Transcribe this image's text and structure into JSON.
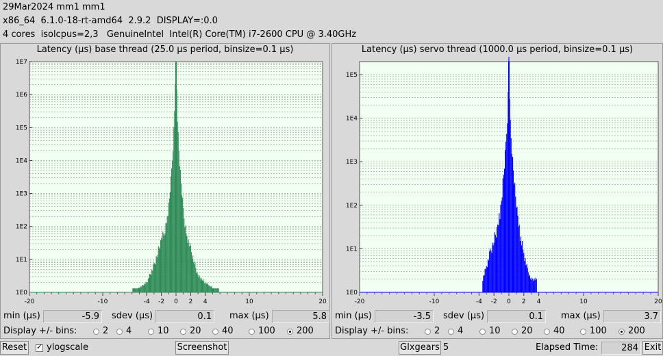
{
  "header": {
    "line1": "29Mar2024 mm1 mm1",
    "line2": "x86_64  6.1.0-18-rt-amd64  2.9.2  DISPLAY=:0.0",
    "line3": "4 cores  isolcpus=2,3   GenuineIntel  Intel(R) Core(TM) i7-2600 CPU @ 3.40GHz"
  },
  "base": {
    "title": "Latency (µs) base thread (25.0 µs period, binsize=0.1 µs)",
    "min_label": "min (µs)",
    "min": "-5.9",
    "sdev_label": "sdev (µs)",
    "sdev": "0.1",
    "max_label": "max (µs)",
    "max": "5.8",
    "color": "#2e8b57"
  },
  "servo": {
    "title": "Latency (µs) servo thread (1000.0 µs period, binsize=0.1 µs)",
    "min_label": "min (µs)",
    "min": "-3.5",
    "sdev_label": "sdev (µs)",
    "sdev": "0.1",
    "max_label": "max (µs)",
    "max": "3.7",
    "color": "#0000ff"
  },
  "bins_label": "Display +/- bins:",
  "bin_options": [
    "2",
    "4",
    "10",
    "20",
    "40",
    "100",
    "200"
  ],
  "bin_selected": "200",
  "footer": {
    "reset": "Reset",
    "ylogscale": "ylogscale",
    "ylogscale_checked": true,
    "screenshot": "Screenshot",
    "glxgears": "Glxgears",
    "glxgears_count": "5",
    "elapsed_label": "Elapsed Time:",
    "elapsed": "284",
    "exit": "Exit"
  },
  "chart_data": [
    {
      "type": "bar",
      "title": "Latency (µs) base thread (25.0 µs period, binsize=0.1 µs)",
      "yscale": "log",
      "x_ticks": [
        "-20",
        "-10",
        "-4",
        "-2",
        "0",
        "2",
        "4",
        "10",
        "20"
      ],
      "x_tick_values": [
        -20,
        -10,
        -4,
        -2,
        0,
        2,
        4,
        10,
        20
      ],
      "y_ticks": [
        "1E0",
        "1E1",
        "1E2",
        "1E3",
        "1E4",
        "1E5",
        "1E6",
        "1E7"
      ],
      "xlim": [
        -20,
        20
      ],
      "ylim_log10": [
        0,
        7
      ],
      "x": [
        -5.9,
        -4.0,
        -3.0,
        -2.5,
        -2.0,
        -1.5,
        -1.2,
        -1.0,
        -0.8,
        -0.6,
        -0.4,
        -0.2,
        -0.1,
        0.0,
        0.1,
        0.2,
        0.4,
        0.6,
        0.8,
        1.0,
        1.2,
        1.5,
        2.0,
        2.5,
        3.0,
        4.0,
        5.8
      ],
      "log10_counts": [
        0,
        0.3,
        0.8,
        1.2,
        1.6,
        1.9,
        2.3,
        2.6,
        3.1,
        3.7,
        4.4,
        5.5,
        6.2,
        7.0,
        6.1,
        5.3,
        4.3,
        3.6,
        3.0,
        2.5,
        2.1,
        1.7,
        1.3,
        0.9,
        0.5,
        0.3,
        0
      ],
      "color": "#2e8b57"
    },
    {
      "type": "bar",
      "title": "Latency (µs) servo thread (1000.0 µs period, binsize=0.1 µs)",
      "yscale": "log",
      "x_ticks": [
        "-20",
        "-10",
        "-4",
        "-2",
        "0",
        "2",
        "4",
        "10",
        "20"
      ],
      "x_tick_values": [
        -20,
        -10,
        -4,
        -2,
        0,
        2,
        4,
        10,
        20
      ],
      "y_ticks": [
        "1E0",
        "1E1",
        "1E2",
        "1E3",
        "1E4",
        "1E5"
      ],
      "xlim": [
        -20,
        20
      ],
      "ylim_log10": [
        0,
        5.3
      ],
      "x": [
        -3.5,
        -3.0,
        -2.5,
        -2.0,
        -1.5,
        -1.2,
        -1.0,
        -0.8,
        -0.6,
        -0.4,
        -0.2,
        -0.1,
        0.0,
        0.1,
        0.2,
        0.4,
        0.6,
        0.8,
        1.0,
        1.2,
        1.5,
        2.0,
        2.5,
        3.0,
        3.7
      ],
      "log10_counts": [
        0.3,
        0.6,
        0.9,
        1.2,
        1.5,
        1.8,
        2.1,
        2.5,
        2.9,
        3.4,
        4.0,
        4.6,
        5.3,
        4.5,
        3.9,
        3.3,
        2.8,
        2.4,
        2.0,
        1.7,
        1.3,
        0.9,
        0.5,
        0.3,
        0.3
      ],
      "color": "#0000ff"
    }
  ]
}
